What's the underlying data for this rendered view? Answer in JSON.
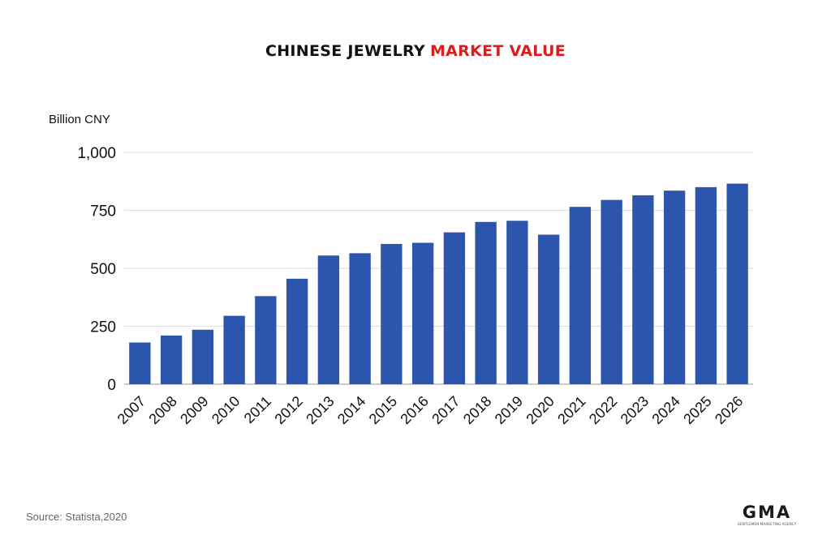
{
  "chart_data": {
    "type": "bar",
    "title": "CHINESE JEWELRY",
    "title_accent": "MARKET VALUE",
    "ylabel": "Billion CNY",
    "xlabel": "",
    "categories": [
      "2007",
      "2008",
      "2009",
      "2010",
      "2011",
      "2012",
      "2013",
      "2014",
      "2015",
      "2016",
      "2017",
      "2018",
      "2019",
      "2020",
      "2021",
      "2022",
      "2023",
      "2024",
      "2025",
      "2026"
    ],
    "values": [
      180,
      210,
      235,
      295,
      380,
      455,
      555,
      565,
      605,
      610,
      655,
      700,
      705,
      645,
      765,
      795,
      815,
      835,
      850,
      865
    ],
    "ylim": [
      0,
      1000
    ],
    "yticks": [
      0,
      250,
      500,
      750,
      1000
    ],
    "ytick_labels": [
      "0",
      "250",
      "500",
      "750",
      "1,000"
    ],
    "grid": true,
    "legend": "none"
  },
  "colors": {
    "bar": "#2c55ad",
    "title_accent": "#d81e1e",
    "grid": "#dddddd",
    "axis": "#999999"
  },
  "footer": {
    "source": "Source: Statista,2020"
  },
  "logo": {
    "wordmark": "GMA",
    "tagline": "GENTLEMEN MARKETING AGENCY"
  }
}
